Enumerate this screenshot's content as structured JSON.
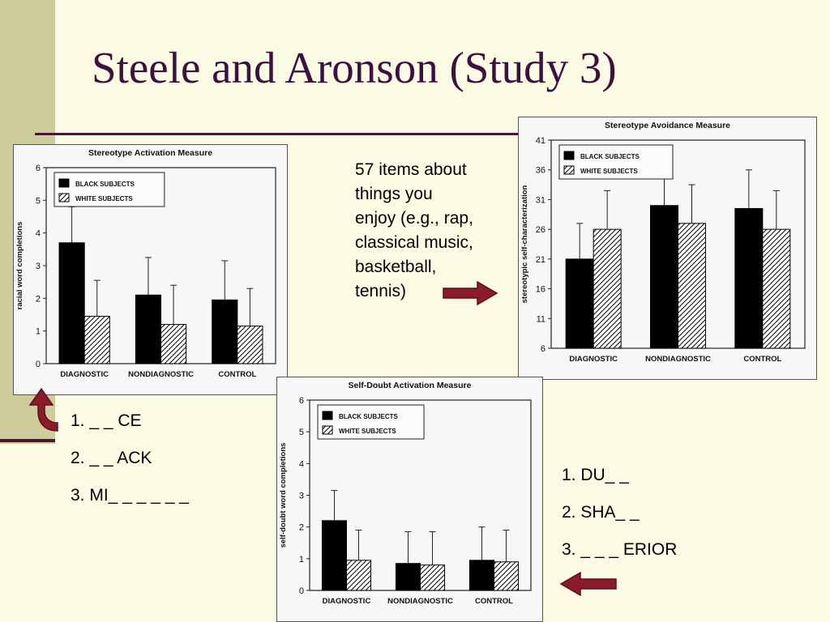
{
  "slide": {
    "title": "Steele and Aronson (Study 3)",
    "note": "57 items about\nthings you\nenjoy (e.g., rap,\nclassical music,\nbasketball,\ntennis)",
    "list_left": [
      "1. _ _ CE",
      "2. _ _ ACK",
      "3. MI_ _ _ _ _ _"
    ],
    "list_right": [
      "1. DU_ _",
      "2. SHA_ _",
      "3. _ _ _ ERIOR"
    ],
    "colors": {
      "background": "#fbfbe4",
      "band": "#cfcc9c",
      "rule": "#4b1534",
      "title": "#3c1040",
      "arrow": "#8b1a2b"
    },
    "icons": [
      "arrow-right-icon",
      "curved-arrow-up-icon",
      "arrow-left-icon"
    ]
  },
  "chart_data": [
    {
      "type": "bar",
      "title": "Stereotype Activation Measure",
      "xlabel": "",
      "ylabel": "racial word completions",
      "categories": [
        "DIAGNOSTIC",
        "NONDIAGNOSTIC",
        "CONTROL"
      ],
      "series": [
        {
          "name": "BLACK SUBJECTS",
          "values": [
            3.7,
            2.1,
            1.95
          ],
          "errors": [
            1.1,
            1.15,
            1.2
          ]
        },
        {
          "name": "WHITE SUBJECTS",
          "values": [
            1.45,
            1.2,
            1.15
          ],
          "errors": [
            1.1,
            1.2,
            1.15
          ]
        }
      ],
      "ylim": [
        0,
        6
      ],
      "yticks": [
        0,
        1,
        2,
        3,
        4,
        5,
        6
      ],
      "legend": "top-left",
      "grid": false
    },
    {
      "type": "bar",
      "title": "Stereotype Avoidance Measure",
      "xlabel": "",
      "ylabel": "stereotypic self-characterization",
      "categories": [
        "DIAGNOSTIC",
        "NONDIAGNOSTIC",
        "CONTROL"
      ],
      "series": [
        {
          "name": "BLACK SUBJECTS",
          "values": [
            21,
            30,
            29.5
          ],
          "errors": [
            6,
            6,
            6.5
          ]
        },
        {
          "name": "WHITE SUBJECTS",
          "values": [
            26,
            27,
            26
          ],
          "errors": [
            6.5,
            6.5,
            6.5
          ]
        }
      ],
      "ylim": [
        6,
        41
      ],
      "yticks": [
        6,
        11,
        16,
        21,
        26,
        31,
        36,
        41
      ],
      "legend": "top-left",
      "grid": false
    },
    {
      "type": "bar",
      "title": "Self-Doubt Activation Measure",
      "xlabel": "",
      "ylabel": "self-doubt word completions",
      "categories": [
        "DIAGNOSTIC",
        "NONDIAGNOSTIC",
        "CONTROL"
      ],
      "series": [
        {
          "name": "BLACK SUBJECTS",
          "values": [
            2.2,
            0.85,
            0.95
          ],
          "errors": [
            0.95,
            1.0,
            1.05
          ]
        },
        {
          "name": "WHITE SUBJECTS",
          "values": [
            0.95,
            0.8,
            0.9
          ],
          "errors": [
            0.95,
            1.05,
            1.0
          ]
        }
      ],
      "ylim": [
        0,
        6
      ],
      "yticks": [
        0,
        1,
        2,
        3,
        4,
        5,
        6
      ],
      "legend": "top-left",
      "grid": false
    }
  ]
}
